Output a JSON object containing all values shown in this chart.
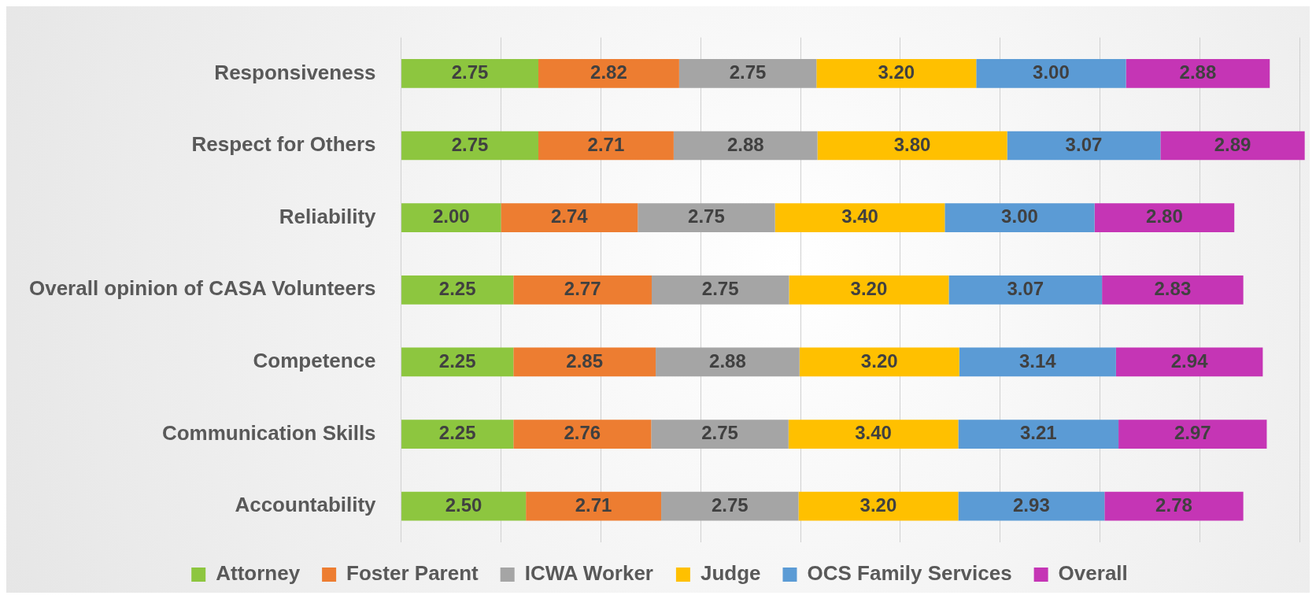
{
  "chart_data": {
    "type": "bar",
    "orientation": "horizontal",
    "stacked": true,
    "grid": "x",
    "legend": "bottom",
    "tick_labels": "y",
    "categories": [
      "Responsiveness",
      "Respect for Others",
      "Reliability",
      "Overall opinion of CASA Volunteers",
      "Competence",
      "Communication Skills",
      "Accountability"
    ],
    "xlim": [
      0,
      18.2
    ],
    "xticks": [
      {
        "value": 0,
        "label": null
      },
      {
        "value": 2,
        "label": null
      },
      {
        "value": 4,
        "label": null
      },
      {
        "value": 6,
        "label": null
      },
      {
        "value": 8,
        "label": null
      },
      {
        "value": 10,
        "label": null
      },
      {
        "value": 12,
        "label": null
      },
      {
        "value": 14,
        "label": null
      },
      {
        "value": 16,
        "label": null
      },
      {
        "value": 18,
        "label": null
      }
    ],
    "series": [
      {
        "name": "Attorney",
        "color": "#8dc63f",
        "values": [
          2.75,
          2.75,
          2.0,
          2.25,
          2.25,
          2.25,
          2.5
        ],
        "value_labels": [
          "2.75",
          "2.75",
          "2.00",
          "2.25",
          "2.25",
          "2.25",
          "2.50"
        ]
      },
      {
        "name": "Foster Parent",
        "color": "#ed7d31",
        "values": [
          2.82,
          2.71,
          2.74,
          2.77,
          2.85,
          2.76,
          2.71
        ],
        "value_labels": [
          "2.82",
          "2.71",
          "2.74",
          "2.77",
          "2.85",
          "2.76",
          "2.71"
        ]
      },
      {
        "name": "ICWA Worker",
        "color": "#a5a5a5",
        "values": [
          2.75,
          2.88,
          2.75,
          2.75,
          2.88,
          2.75,
          2.75
        ],
        "value_labels": [
          "2.75",
          "2.88",
          "2.75",
          "2.75",
          "2.88",
          "2.75",
          "2.75"
        ]
      },
      {
        "name": "Judge",
        "color": "#ffc000",
        "values": [
          3.2,
          3.8,
          3.4,
          3.2,
          3.2,
          3.4,
          3.2
        ],
        "value_labels": [
          "3.20",
          "3.80",
          "3.40",
          "3.20",
          "3.20",
          "3.40",
          "3.20"
        ]
      },
      {
        "name": "OCS Family Services",
        "color": "#5b9bd5",
        "values": [
          3.0,
          3.07,
          3.0,
          3.07,
          3.14,
          3.21,
          2.93
        ],
        "value_labels": [
          "3.00",
          "3.07",
          "3.00",
          "3.07",
          "3.14",
          "3.21",
          "2.93"
        ]
      },
      {
        "name": "Overall",
        "color": "#c535b5",
        "values": [
          2.88,
          2.89,
          2.8,
          2.83,
          2.94,
          2.97,
          2.78
        ],
        "value_labels": [
          "2.88",
          "2.89",
          "2.80",
          "2.83",
          "2.94",
          "2.97",
          "2.78"
        ]
      }
    ]
  }
}
